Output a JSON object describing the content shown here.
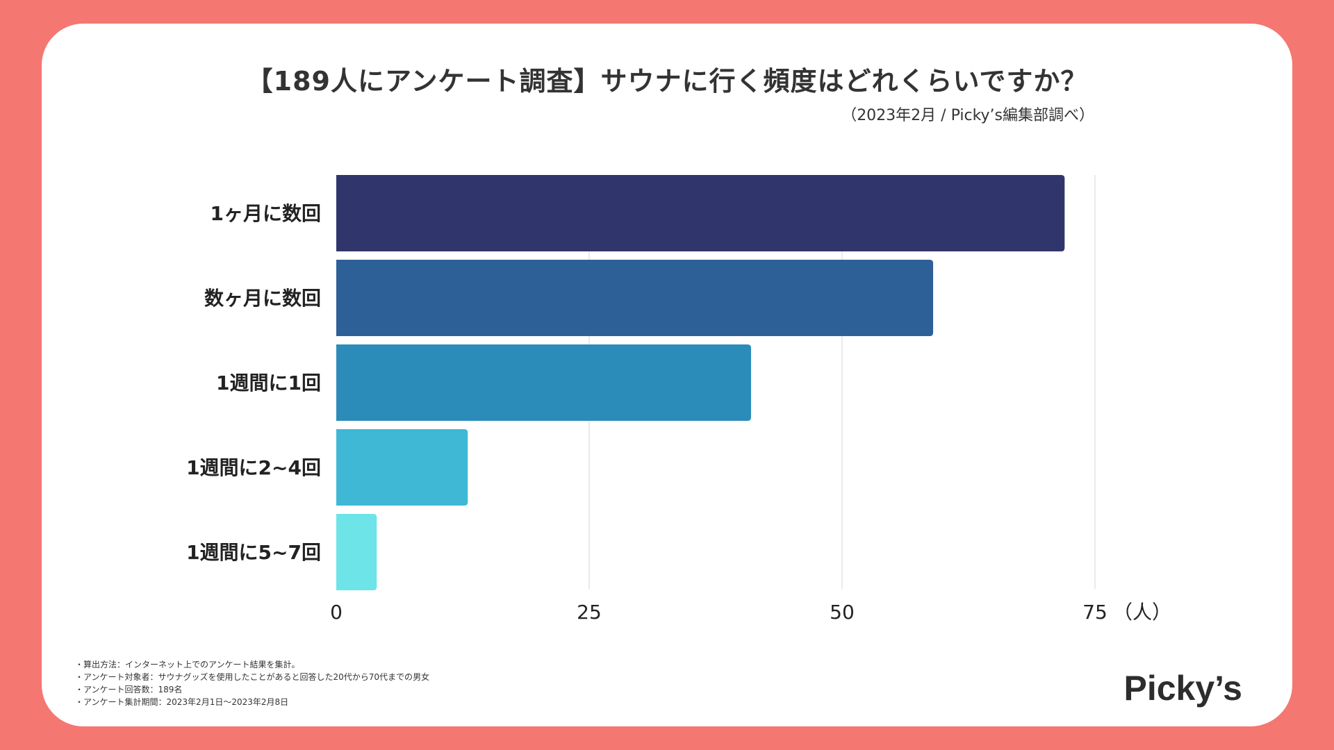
{
  "header": {
    "title": "【189人にアンケート調査】サウナに行く頻度はどれくらいですか？",
    "subtitle": "（2023年2月 / Picky’s編集部調べ）"
  },
  "chart_data": {
    "type": "bar",
    "orientation": "horizontal",
    "categories": [
      "1ヶ月に数回",
      "数ヶ月に数回",
      "1週間に1回",
      "1週間に2~4回",
      "1週間に5~7回"
    ],
    "values": [
      72,
      59,
      41,
      13,
      4
    ],
    "colors": [
      "#30356b",
      "#2d6097",
      "#2b8cba",
      "#3fb8d6",
      "#6ce4e8"
    ],
    "xticks": [
      "0",
      "25",
      "50",
      "75"
    ],
    "xunit": "（人）",
    "xlim": [
      0,
      75
    ],
    "grid": true
  },
  "footnotes": [
    "・算出方法：インターネット上でのアンケート結果を集計。",
    "・アンケート対象者：サウナグッズを使用したことがあると回答した20代から70代までの男女",
    "・アンケート回答数：189名",
    "・アンケート集計期間：2023年2月1日〜2023年2月8日"
  ],
  "brand": {
    "logo_text": "Picky’s"
  }
}
